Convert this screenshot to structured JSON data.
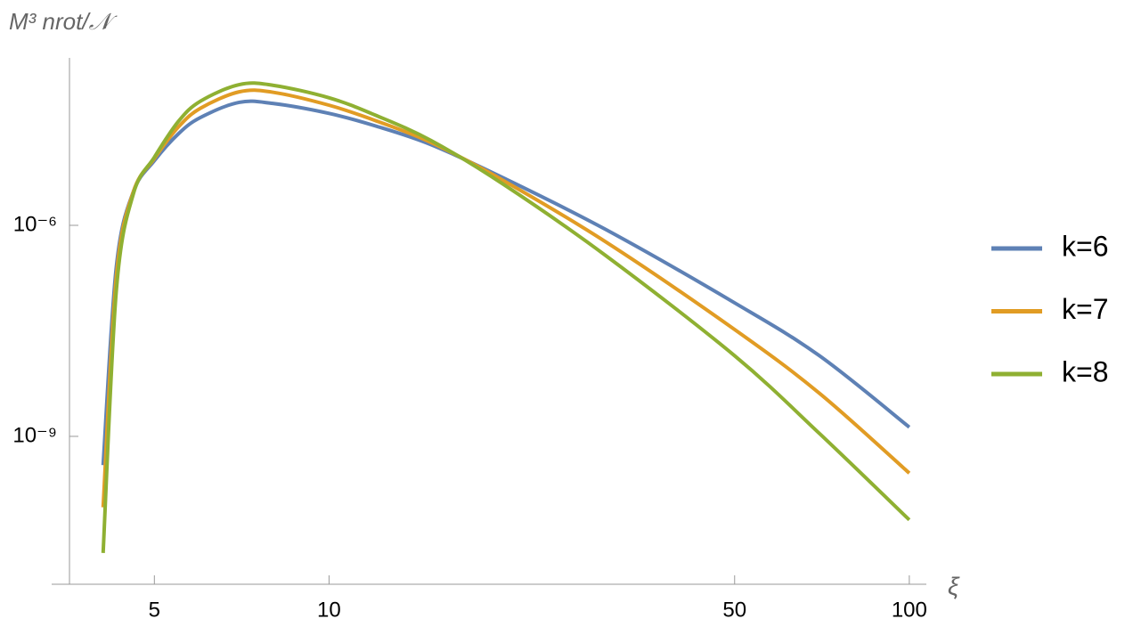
{
  "chart_data": {
    "type": "line",
    "y_label": "M³ nrot/𝒩",
    "x_label": "ξ",
    "xscale": "log",
    "yscale": "log",
    "xlim": [
      3.57,
      107
    ],
    "ylim": [
      7.9e-12,
      0.00024
    ],
    "xticks": [
      5,
      10,
      50,
      100
    ],
    "yticks": [
      {
        "value": 1e-06,
        "label": "10⁻⁶"
      },
      {
        "value": 1e-09,
        "label": "10⁻⁹"
      }
    ],
    "grid": false,
    "legend": "right",
    "x": [
      4.08,
      4.3,
      4.6,
      5,
      5.5,
      6,
      7,
      8,
      10,
      12,
      15,
      20,
      30,
      50,
      70,
      100
    ],
    "series": [
      {
        "name": "k=6",
        "color": "#5e81b5",
        "values": [
          3.9e-10,
          2.6e-07,
          3e-06,
          8.3e-06,
          2e-05,
          3.4e-05,
          5.6e-05,
          5.4e-05,
          3.9e-05,
          2.6e-05,
          1.4e-05,
          4.7e-06,
          8.7e-07,
          7.9e-08,
          1.4e-08,
          1.35e-09
        ]
      },
      {
        "name": "k=7",
        "color": "#e19c24",
        "values": [
          9.8e-11,
          1.9e-07,
          3e-06,
          8.9e-06,
          2.5e-05,
          4.6e-05,
          7.9e-05,
          7.8e-05,
          5.1e-05,
          3.1e-05,
          1.5e-05,
          4.3e-06,
          5.8e-07,
          3.3e-08,
          4.1e-09,
          3e-10
        ]
      },
      {
        "name": "k=8",
        "color": "#8fb032",
        "values": [
          2.2e-11,
          1.2e-07,
          2.8e-06,
          9.3e-06,
          3e-05,
          5.8e-05,
          0.0001,
          9.8e-05,
          6.5e-05,
          3.7e-05,
          1.6e-05,
          3.8e-06,
          3.7e-07,
          1.4e-08,
          1.1e-09,
          6.5e-11
        ]
      }
    ]
  }
}
